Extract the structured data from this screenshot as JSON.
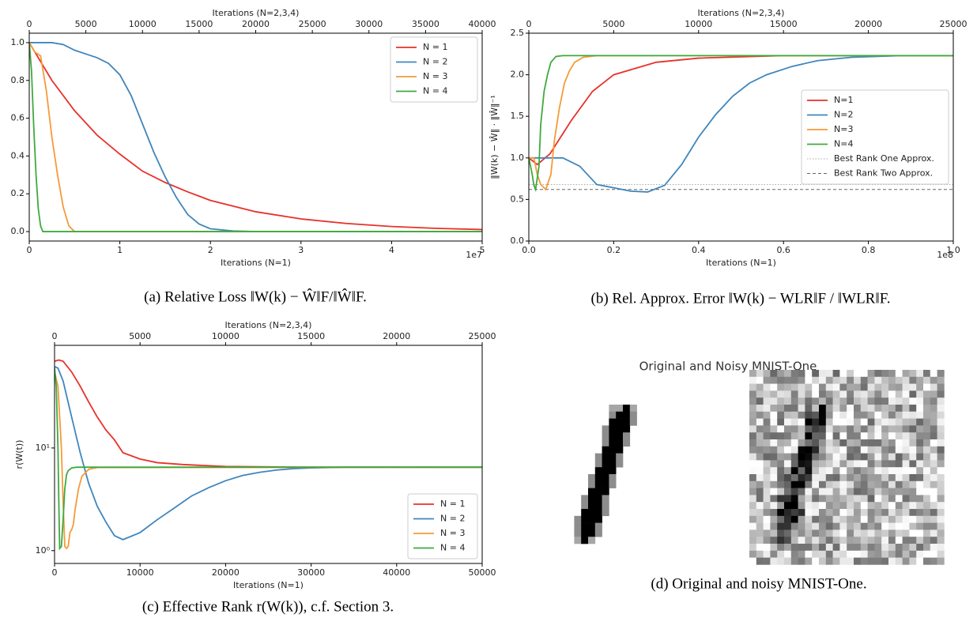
{
  "chart_data": [
    {
      "type": "line",
      "caption": "(a) Relative Loss ‖W(k) − Ŵ‖F/‖Ŵ‖F.",
      "xlabel": "Iterations (N=1)",
      "x_offset_label": "1e7",
      "x2label": "Iterations (N=2,3,4)",
      "xlim": [
        0,
        5
      ],
      "xticks": [
        0,
        1,
        2,
        3,
        4,
        5
      ],
      "x2lim": [
        0,
        40000
      ],
      "x2ticks": [
        0,
        5000,
        10000,
        15000,
        20000,
        25000,
        30000,
        35000,
        40000
      ],
      "ylim": [
        -0.05,
        1.05
      ],
      "yticks": [
        {
          "value": 0,
          "label": "0.0"
        },
        0.2,
        0.4,
        0.6,
        0.8,
        {
          "value": 1,
          "label": "1.0"
        }
      ],
      "legend": "upper right",
      "series": [
        {
          "name": "N = 1",
          "color": "#e8312a",
          "x": [
            0,
            0.25,
            0.5,
            0.75,
            1,
            1.25,
            1.5,
            1.75,
            2,
            2.5,
            3,
            3.5,
            4,
            4.5,
            5
          ],
          "values": [
            1,
            0.8,
            0.64,
            0.51,
            0.41,
            0.32,
            0.26,
            0.21,
            0.165,
            0.105,
            0.067,
            0.043,
            0.027,
            0.017,
            0.011
          ]
        },
        {
          "name": "N = 2",
          "color": "#3f86bd",
          "axis": "x2",
          "x": [
            0,
            2000,
            3000,
            4000,
            5000,
            6000,
            7000,
            8000,
            9000,
            10000,
            11000,
            12000,
            13000,
            14000,
            15000,
            16000,
            18000,
            20000,
            40000
          ],
          "values": [
            1,
            1,
            0.99,
            0.96,
            0.94,
            0.92,
            0.89,
            0.83,
            0.72,
            0.57,
            0.42,
            0.29,
            0.18,
            0.09,
            0.04,
            0.015,
            0.003,
            0,
            0
          ]
        },
        {
          "name": "N = 3",
          "color": "#f59a3a",
          "axis": "x2",
          "x": [
            0,
            500,
            1000,
            1500,
            2000,
            2500,
            3000,
            3500,
            4000,
            40000
          ],
          "values": [
            1,
            0.95,
            0.93,
            0.75,
            0.5,
            0.3,
            0.13,
            0.03,
            0,
            0
          ]
        },
        {
          "name": "N = 4",
          "color": "#3faa3f",
          "axis": "x2",
          "x": [
            0,
            200,
            400,
            600,
            800,
            1000,
            1200,
            40000
          ],
          "values": [
            1,
            0.85,
            0.55,
            0.3,
            0.12,
            0.03,
            0,
            0
          ]
        }
      ]
    },
    {
      "type": "line",
      "caption": "(b) Rel. Approx. Error ‖W(k) − WLR‖F / ‖WLR‖F.",
      "xlabel": "Iterations (N=1)",
      "x_offset_label": "1e8",
      "x2label": "Iterations (N=2,3,4)",
      "ylabel": "‖W(k) − Ŵ‖ · ‖Ŵ‖⁻¹",
      "xlim": [
        0,
        1
      ],
      "xticks": [
        {
          "value": 0,
          "label": "0.0"
        },
        0.2,
        0.4,
        0.6,
        0.8,
        {
          "value": 1,
          "label": "1.0"
        }
      ],
      "x2lim": [
        0,
        25000
      ],
      "x2ticks": [
        0,
        5000,
        10000,
        15000,
        20000,
        25000
      ],
      "ylim": [
        0,
        2.5
      ],
      "yticks": [
        {
          "value": 0,
          "label": "0.0"
        },
        0.5,
        {
          "value": 1,
          "label": "1.0"
        },
        1.5,
        {
          "value": 2,
          "label": "2.0"
        },
        2.5
      ],
      "legend": "center right",
      "series": [
        {
          "name": "N=1",
          "color": "#e8312a",
          "x": [
            0,
            0.02,
            0.05,
            0.1,
            0.15,
            0.2,
            0.3,
            0.4,
            0.6,
            1
          ],
          "values": [
            1,
            0.92,
            1.05,
            1.45,
            1.8,
            2.0,
            2.15,
            2.2,
            2.23,
            2.23
          ]
        },
        {
          "name": "N=2",
          "color": "#3f86bd",
          "axis": "x2",
          "x": [
            0,
            2000,
            3000,
            4000,
            6000,
            7000,
            8000,
            9000,
            10000,
            11000,
            12000,
            13000,
            14000,
            15500,
            17000,
            19000,
            22000,
            25000
          ],
          "values": [
            1,
            1,
            0.9,
            0.68,
            0.6,
            0.59,
            0.67,
            0.92,
            1.25,
            1.52,
            1.74,
            1.9,
            2.0,
            2.1,
            2.17,
            2.21,
            2.23,
            2.23
          ]
        },
        {
          "name": "N=3",
          "color": "#f59a3a",
          "axis": "x2",
          "x": [
            0,
            300,
            500,
            700,
            1000,
            1300,
            1500,
            1800,
            2100,
            2400,
            2700,
            3200,
            4000,
            25000
          ],
          "values": [
            1,
            1,
            0.8,
            0.68,
            0.62,
            0.8,
            1.2,
            1.6,
            1.9,
            2.05,
            2.15,
            2.21,
            2.23,
            2.23
          ]
        },
        {
          "name": "N=4",
          "color": "#3faa3f",
          "axis": "x2",
          "x": [
            0,
            200,
            300,
            400,
            600,
            700,
            900,
            1100,
            1300,
            1600,
            2000,
            25000
          ],
          "values": [
            1,
            0.8,
            0.67,
            0.62,
            0.9,
            1.4,
            1.8,
            2.0,
            2.15,
            2.22,
            2.23,
            2.23
          ]
        }
      ],
      "hlines": [
        {
          "name": "Best Rank One Approx.",
          "value": 0.68,
          "color": "#aaaaaa",
          "style": "dotted"
        },
        {
          "name": "Best Rank Two Approx.",
          "value": 0.62,
          "color": "#666666",
          "style": "dashed"
        }
      ]
    },
    {
      "type": "line",
      "caption": "(c) Effective Rank r(W(k)), c.f. Section 3.",
      "xlabel": "Iterations (N=1)",
      "x2label": "Iterations (N=2,3,4)",
      "ylabel": "r(W(t))",
      "xlim": [
        0,
        50000
      ],
      "xticks": [
        0,
        10000,
        20000,
        30000,
        40000,
        50000
      ],
      "x2lim": [
        0,
        25000
      ],
      "x2ticks": [
        0,
        5000,
        10000,
        15000,
        20000,
        25000
      ],
      "yscale": "log",
      "ylim": [
        0.75,
        100
      ],
      "yticks": [
        {
          "value": 1,
          "label": "10⁰"
        },
        {
          "value": 10,
          "label": "10¹"
        }
      ],
      "legend": "lower right",
      "series": [
        {
          "name": "N = 1",
          "color": "#e8312a",
          "x": [
            0,
            500,
            1000,
            2000,
            3000,
            4000,
            5000,
            6000,
            7000,
            8000,
            10000,
            12000,
            15000,
            20000,
            30000,
            50000
          ],
          "values": [
            70,
            72,
            70,
            55,
            40,
            28,
            20,
            15,
            12,
            9,
            7.8,
            7.2,
            6.9,
            6.6,
            6.5,
            6.5
          ]
        },
        {
          "name": "N = 2",
          "color": "#3f86bd",
          "axis": "x2",
          "x": [
            0,
            200,
            500,
            1000,
            1500,
            2000,
            2500,
            3000,
            3500,
            4000,
            5000,
            6000,
            7000,
            8000,
            9000,
            10000,
            11000,
            12000,
            13000,
            14000,
            15000,
            17000,
            20000,
            25000
          ],
          "values": [
            62,
            60,
            45,
            20,
            9,
            4.5,
            2.7,
            1.9,
            1.4,
            1.28,
            1.5,
            2.0,
            2.6,
            3.4,
            4.1,
            4.8,
            5.4,
            5.8,
            6.1,
            6.3,
            6.4,
            6.5,
            6.5,
            6.5
          ]
        },
        {
          "name": "N = 3",
          "color": "#f59a3a",
          "axis": "x2",
          "x": [
            0,
            200,
            400,
            500,
            600,
            700,
            800,
            900,
            1000,
            1100,
            1200,
            1400,
            1600,
            2000,
            2500,
            25000
          ],
          "values": [
            55,
            40,
            10,
            3,
            1.1,
            1.05,
            1.1,
            1.5,
            1.6,
            1.8,
            2.5,
            4,
            5.3,
            6.2,
            6.45,
            6.5
          ]
        },
        {
          "name": "N = 4",
          "color": "#3faa3f",
          "axis": "x2",
          "x": [
            0,
            100,
            200,
            250,
            300,
            400,
            500,
            600,
            700,
            800,
            1000,
            1300,
            25000
          ],
          "values": [
            60,
            40,
            10,
            3,
            1.05,
            1.1,
            2,
            4,
            5.5,
            6,
            6.4,
            6.5,
            6.5
          ]
        }
      ]
    }
  ],
  "mnist": {
    "title": "Original and Noisy MNIST-One",
    "caption": "(d) Original and noisy MNIST-One."
  }
}
